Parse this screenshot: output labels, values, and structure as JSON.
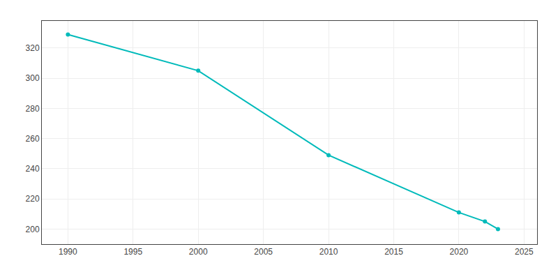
{
  "chart_data": {
    "type": "line",
    "x": [
      1990,
      2000,
      2010,
      2020,
      2022,
      2023
    ],
    "values": [
      329,
      305,
      249,
      211,
      205,
      200
    ],
    "color": "#00BABA",
    "marker": "circle",
    "xlim": [
      1988,
      2026
    ],
    "ylim": [
      190,
      338
    ],
    "xticks": [
      1990,
      1995,
      2000,
      2005,
      2010,
      2015,
      2020,
      2025
    ],
    "yticks": [
      200,
      220,
      240,
      260,
      280,
      300,
      320
    ],
    "grid": true
  }
}
